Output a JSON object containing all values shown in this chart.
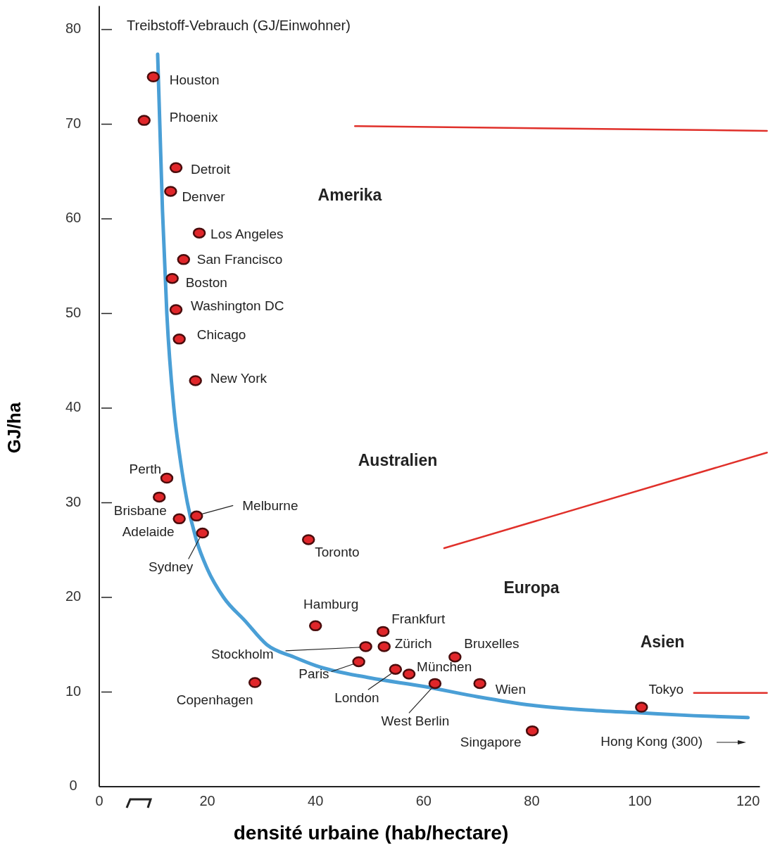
{
  "chart_data": {
    "type": "scatter",
    "title": "Treibstoff-Vebrauch (GJ/Einwohner)",
    "xlabel": "densité urbaine (hab/hectare)",
    "ylabel": "GJ/ha",
    "xlim": [
      0,
      123.5
    ],
    "ylim": [
      0,
      82.5
    ],
    "xticks": [
      0,
      20,
      40,
      60,
      80,
      100,
      120
    ],
    "yticks": [
      0,
      10,
      20,
      30,
      40,
      50,
      60,
      70,
      80
    ],
    "grid": false,
    "series": [
      {
        "type": "line",
        "color": "#4a9fd6",
        "x": [
          10.8,
          11.2,
          11.7,
          12.5,
          13.8,
          15,
          16.3,
          18,
          20,
          23,
          27,
          31,
          36,
          40,
          50,
          60,
          70,
          80,
          90,
          100,
          110,
          120
        ],
        "values": [
          77.4,
          70,
          60.8,
          50,
          40,
          34.5,
          30,
          26,
          23,
          20,
          17.5,
          15,
          13.7,
          12.8,
          11.5,
          10.6,
          9.5,
          8.6,
          8.1,
          7.8,
          7.5,
          7.3
        ]
      },
      {
        "type": "line",
        "color": "#e0302a",
        "x": [
          47.3,
          123.5,
          null,
          63.8,
          123.5,
          null,
          110,
          123.5
        ],
        "values": [
          69.8,
          69.3,
          null,
          25.2,
          35.3,
          null,
          9.9,
          9.9
        ]
      },
      {
        "marker": "circle",
        "color": "#e0262a",
        "x": [
          10.0,
          8.3,
          14.2,
          13.2,
          18.5,
          15.6,
          13.5,
          14.2,
          14.8,
          17.8,
          12.5,
          11.1,
          14.8,
          18.0,
          19.1,
          38.7,
          40.0,
          52.5,
          49.3,
          52.7,
          48.0,
          54.8,
          57.3,
          65.8,
          62.1,
          70.4,
          28.8,
          80.1,
          100.3
        ],
        "values": [
          75.0,
          70.4,
          65.4,
          62.9,
          58.5,
          55.7,
          53.7,
          50.4,
          47.3,
          42.9,
          32.6,
          30.6,
          28.3,
          28.6,
          26.8,
          26.1,
          17.0,
          16.4,
          14.8,
          14.8,
          13.2,
          12.4,
          11.9,
          13.7,
          10.9,
          10.9,
          11.0,
          5.9,
          8.4
        ]
      }
    ],
    "annotations": [
      {
        "text": "Houston",
        "x": 10.0,
        "y": 75.0
      },
      {
        "text": "Phoenix",
        "x": 8.3,
        "y": 70.4
      },
      {
        "text": "Detroit",
        "x": 14.2,
        "y": 65.4
      },
      {
        "text": "Denver",
        "x": 13.2,
        "y": 62.9
      },
      {
        "text": "Los Angeles",
        "x": 18.5,
        "y": 58.5
      },
      {
        "text": "San Francisco",
        "x": 15.6,
        "y": 55.7
      },
      {
        "text": "Boston",
        "x": 13.5,
        "y": 53.7
      },
      {
        "text": "Washington DC",
        "x": 14.2,
        "y": 50.4
      },
      {
        "text": "Chicago",
        "x": 14.8,
        "y": 47.3
      },
      {
        "text": "New York",
        "x": 17.8,
        "y": 42.9
      },
      {
        "text": "Perth",
        "x": 12.5,
        "y": 32.6
      },
      {
        "text": "Brisbane",
        "x": 11.1,
        "y": 30.6
      },
      {
        "text": "Adelaide",
        "x": 14.8,
        "y": 28.3
      },
      {
        "text": "Melburne",
        "x": 18.0,
        "y": 28.6
      },
      {
        "text": "Sydney",
        "x": 19.1,
        "y": 26.8
      },
      {
        "text": "Toronto",
        "x": 38.7,
        "y": 26.1
      },
      {
        "text": "Hamburg",
        "x": 40.0,
        "y": 17.0
      },
      {
        "text": "Frankfurt",
        "x": 52.5,
        "y": 16.4
      },
      {
        "text": "Stockholm",
        "x": 49.3,
        "y": 14.8
      },
      {
        "text": "Zürich",
        "x": 52.7,
        "y": 14.8
      },
      {
        "text": "Paris",
        "x": 48.0,
        "y": 13.2
      },
      {
        "text": "London",
        "x": 54.8,
        "y": 12.4
      },
      {
        "text": "München",
        "x": 57.3,
        "y": 11.9
      },
      {
        "text": "Bruxelles",
        "x": 65.8,
        "y": 13.7
      },
      {
        "text": "West Berlin",
        "x": 62.1,
        "y": 10.9
      },
      {
        "text": "Wien",
        "x": 70.4,
        "y": 10.9
      },
      {
        "text": "Copenhagen",
        "x": 28.8,
        "y": 11.0
      },
      {
        "text": "Singapore",
        "x": 80.1,
        "y": 5.9
      },
      {
        "text": "Tokyo",
        "x": 100.3,
        "y": 8.4
      },
      "Amerika",
      "Australien",
      "Europa",
      "Asien",
      "Hong Kong  (300)"
    ]
  }
}
